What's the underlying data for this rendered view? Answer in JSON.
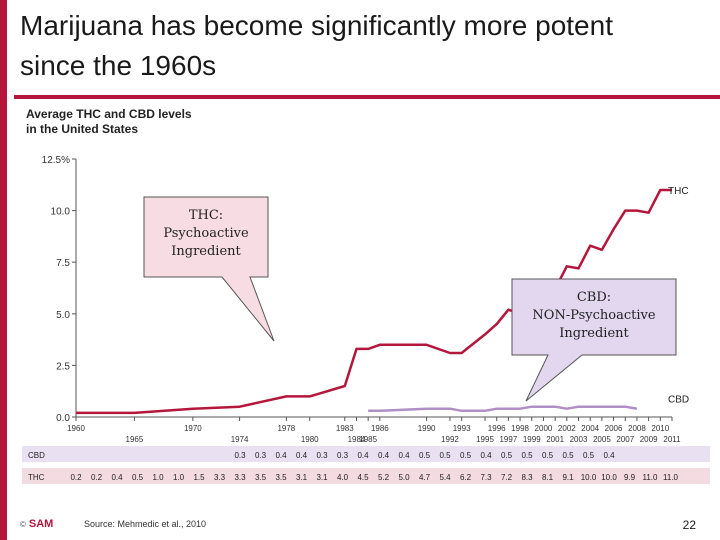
{
  "slide": {
    "title_line1": "Marijuana has become significantly more potent",
    "title_line2": "since the 1960s",
    "source": "Source: Mehmedic et al., 2010",
    "page_number": "22",
    "logo_text": "SAM",
    "logo_symbol": "©"
  },
  "callouts": {
    "thc": [
      "THC:",
      "Psychoactive",
      "Ingredient"
    ],
    "cbd": [
      "CBD:",
      "NON-Psychoactive",
      "Ingredient"
    ]
  },
  "colors": {
    "accent": "#b5163b",
    "thc_line": "#b5163b",
    "cbd_line": "#b08fc7",
    "thc_callout_fill": "#f7dde3",
    "cbd_callout_fill": "#e2d7ef",
    "table_band_cbd": "#e9e0f2",
    "table_band_thc": "#f3dbe1"
  },
  "chart_data": {
    "type": "line",
    "title_line1": "Average THC and CBD levels",
    "title_line2": "in the United States",
    "y_ticks": [
      "12.5%",
      "10.0",
      "7.5",
      "5.0",
      "2.5",
      "0.0"
    ],
    "y_tick_values": [
      12.5,
      10.0,
      7.5,
      5.0,
      2.5,
      0.0
    ],
    "ylim": [
      0,
      12.5
    ],
    "xlim": [
      1960,
      2011
    ],
    "x_ticks_top": [
      "1960",
      "1970",
      "1978",
      "1983",
      "1986",
      "1990",
      "1993",
      "1996",
      "1998",
      "2000",
      "2002",
      "2004",
      "2006",
      "2008",
      "2010"
    ],
    "x_ticks_bottom": [
      "1965",
      "1974",
      "1980",
      "1984",
      "1985",
      "1992",
      "1995",
      "1997",
      "1999",
      "2001",
      "2003",
      "2005",
      "2007",
      "2009",
      "2011"
    ],
    "x": [
      1960,
      1965,
      1970,
      1974,
      1978,
      1980,
      1983,
      1984,
      1985,
      1986,
      1990,
      1992,
      1993,
      1995,
      1996,
      1997,
      1998,
      1999,
      2000,
      2001,
      2002,
      2003,
      2004,
      2005,
      2006,
      2007,
      2008,
      2009,
      2010,
      2011
    ],
    "series": [
      {
        "name": "THC",
        "row_label": "THC",
        "values": [
          0.2,
          0.2,
          0.4,
          0.5,
          1.0,
          1.0,
          1.5,
          3.3,
          3.3,
          3.5,
          3.5,
          3.1,
          3.1,
          4.0,
          4.5,
          5.2,
          5.0,
          4.7,
          5.4,
          6.2,
          7.3,
          7.2,
          8.3,
          8.1,
          9.1,
          10.0,
          10.0,
          9.9,
          11.0,
          11.0
        ],
        "table_values": [
          "0.2",
          "0.2",
          "0.4",
          "0.5",
          "1.0",
          "1.0",
          "1.5",
          "3.3",
          "3.3",
          "3.5",
          "3.5",
          "3.1",
          "3.1",
          "4.0",
          "4.5",
          "5.2",
          "5.0",
          "4.7",
          "5.4",
          "6.2",
          "7.3",
          "7.2",
          "8.3",
          "8.1",
          "9.1",
          "10.0",
          "10.0",
          "9.9",
          "11.0",
          "11.0"
        ]
      },
      {
        "name": "CBD",
        "row_label": "CBD",
        "values": [
          null,
          null,
          null,
          null,
          null,
          null,
          null,
          null,
          0.3,
          0.3,
          0.4,
          0.4,
          0.3,
          0.3,
          0.4,
          0.4,
          0.4,
          0.5,
          0.5,
          0.5,
          0.4,
          0.5,
          0.5,
          0.5,
          0.5,
          0.5,
          0.4,
          null,
          null,
          null
        ],
        "table_values": [
          "",
          "",
          "",
          "",
          "",
          "",
          "",
          "",
          "0.3",
          "0.3",
          "0.4",
          "0.4",
          "0.3",
          "0.3",
          "0.4",
          "0.4",
          "0.4",
          "0.5",
          "0.5",
          "0.5",
          "0.4",
          "0.5",
          "0.5",
          "0.5",
          "0.5",
          "0.5",
          "0.4",
          "",
          "",
          ""
        ]
      }
    ],
    "grid": false
  }
}
